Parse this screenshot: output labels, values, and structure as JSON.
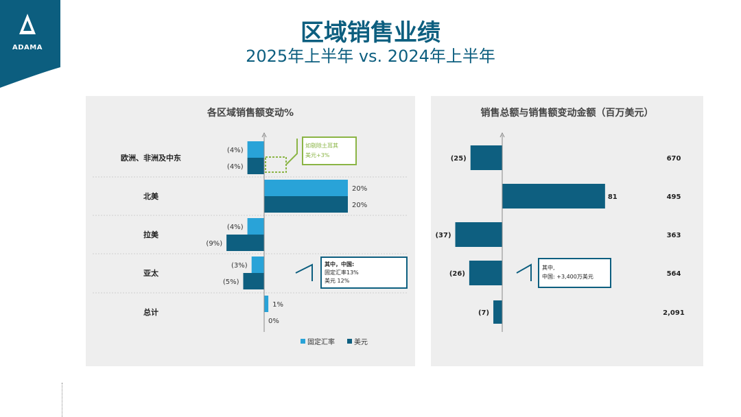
{
  "header": {
    "logo_text": "ADAMA",
    "title": "区域销售业绩",
    "subtitle": "2025年上半年 vs. 2024年上半年"
  },
  "colors": {
    "fixed_fx": "#29a3d8",
    "usd": "#0e5f80",
    "annotation_green": "#8ab444",
    "brand": "#0c5e7f"
  },
  "chart_data": [
    {
      "type": "bar",
      "title": "各区域销售额变动%",
      "categories": [
        "欧洲、非洲及中东",
        "北美",
        "拉美",
        "亚太",
        "总计"
      ],
      "series": [
        {
          "name": "固定汇率",
          "values": [
            -4,
            20,
            -4,
            -3,
            1
          ],
          "labels": [
            "(4%)",
            "20%",
            "(4%)",
            "(3%)",
            "1%"
          ]
        },
        {
          "name": "美元",
          "values": [
            -4,
            20,
            -9,
            -5,
            0
          ],
          "labels": [
            "(4%)",
            "20%",
            "(9%)",
            "(5%)",
            "0%"
          ]
        }
      ],
      "legend": "bottom",
      "annotations": [
        {
          "category": "欧洲、非洲及中东",
          "lines": [
            "如剔除土耳其",
            "美元+3%"
          ]
        },
        {
          "category": "亚太",
          "lines": [
            "其中，中国:",
            "固定汇率13%",
            "美元 12%"
          ]
        }
      ]
    },
    {
      "type": "bar",
      "title": "销售总额与销售额变动金额（百万美元）",
      "categories": [
        "欧洲、非洲及中东",
        "北美",
        "拉美",
        "亚太",
        "总计"
      ],
      "values": [
        -25,
        81,
        -37,
        -26,
        -7
      ],
      "labels": [
        "(25)",
        "81",
        "(37)",
        "(26)",
        "(7)"
      ],
      "totals": [
        "670",
        "495",
        "363",
        "564",
        "2,091"
      ],
      "annotations": [
        {
          "category": "亚太",
          "lines": [
            "其中,",
            "中国: +3,400万美元"
          ]
        }
      ]
    }
  ]
}
